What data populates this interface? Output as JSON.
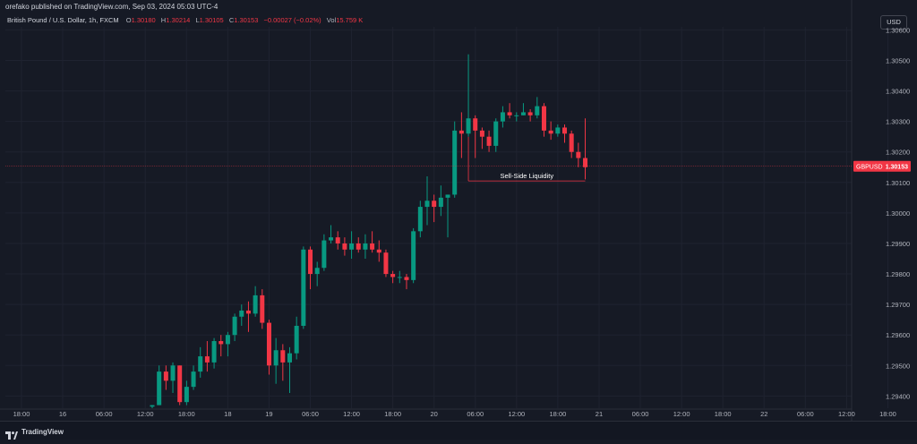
{
  "header": {
    "publisher_line": "orefako published on TradingView.com, Sep 03, 2024 05:03 UTC-4",
    "symbol_desc": "British Pound / U.S. Dollar, 1h, FXCM",
    "ohlc": {
      "o_label": "O",
      "o_value": "1.30180",
      "h_label": "H",
      "h_value": "1.30214",
      "l_label": "L",
      "l_value": "1.30105",
      "c_label": "C",
      "c_value": "1.30153",
      "change": "−0.00027 (−0.02%)",
      "vol_label": "Vol",
      "vol_value": "15.759 K"
    },
    "currency_button": "USD"
  },
  "footer": {
    "brand": "TradingView"
  },
  "colors": {
    "up": "#089981",
    "down": "#f23645",
    "bg": "#161a25",
    "grid": "#1f2330",
    "text": "#b2b5be"
  },
  "chart_data": {
    "type": "candlestick",
    "symbol": "GBPUSD",
    "price_label": "1.30153",
    "ylim": [
      1.2936,
      1.3061
    ],
    "yticks": [
      "1.30600",
      "1.30500",
      "1.30400",
      "1.30300",
      "1.30200",
      "1.30100",
      "1.30000",
      "1.29900",
      "1.29800",
      "1.29700",
      "1.29600",
      "1.29500",
      "1.29400"
    ],
    "xticks": [
      "18:00",
      "16",
      "06:00",
      "12:00",
      "18:00",
      "18",
      "19",
      "06:00",
      "12:00",
      "18:00",
      "20",
      "06:00",
      "12:00",
      "18:00",
      "21",
      "06:00",
      "12:00",
      "18:00",
      "22",
      "06:00",
      "12:00",
      "18:00"
    ],
    "annotation": {
      "text": "Sell-Side Liquidity",
      "price": 1.30105
    },
    "candles": [
      [
        1.29365,
        1.2937,
        1.2936,
        1.2937
      ],
      [
        1.2937,
        1.295,
        1.2937,
        1.2948
      ],
      [
        1.2948,
        1.295,
        1.2942,
        1.2945
      ],
      [
        1.2945,
        1.2951,
        1.2941,
        1.295
      ],
      [
        1.295,
        1.295,
        1.2937,
        1.2938
      ],
      [
        1.2938,
        1.2945,
        1.2937,
        1.2943
      ],
      [
        1.2943,
        1.295,
        1.2942,
        1.2948
      ],
      [
        1.2948,
        1.2956,
        1.2946,
        1.2953
      ],
      [
        1.2953,
        1.2958,
        1.2948,
        1.2951
      ],
      [
        1.2951,
        1.2959,
        1.2949,
        1.2958
      ],
      [
        1.2958,
        1.296,
        1.2953,
        1.2957
      ],
      [
        1.2957,
        1.2961,
        1.2953,
        1.296
      ],
      [
        1.296,
        1.2967,
        1.2958,
        1.2966
      ],
      [
        1.2966,
        1.297,
        1.2963,
        1.2968
      ],
      [
        1.2968,
        1.2971,
        1.2961,
        1.2967
      ],
      [
        1.2967,
        1.2976,
        1.2966,
        1.2973
      ],
      [
        1.2973,
        1.2975,
        1.2962,
        1.2964
      ],
      [
        1.2964,
        1.2965,
        1.2947,
        1.295
      ],
      [
        1.295,
        1.2959,
        1.2944,
        1.2955
      ],
      [
        1.2955,
        1.2957,
        1.2945,
        1.2951
      ],
      [
        1.2951,
        1.2956,
        1.2941,
        1.2954
      ],
      [
        1.2954,
        1.2966,
        1.2952,
        1.2963
      ],
      [
        1.2963,
        1.2989,
        1.2962,
        1.2988
      ],
      [
        1.2988,
        1.2989,
        1.2975,
        1.298
      ],
      [
        1.298,
        1.2984,
        1.2976,
        1.2982
      ],
      [
        1.2982,
        1.2993,
        1.2981,
        1.2991
      ],
      [
        1.2991,
        1.2996,
        1.299,
        1.2992
      ],
      [
        1.2992,
        1.2994,
        1.2988,
        1.299
      ],
      [
        1.299,
        1.2992,
        1.2986,
        1.2988
      ],
      [
        1.2988,
        1.2994,
        1.2985,
        1.299
      ],
      [
        1.299,
        1.2992,
        1.2987,
        1.2988
      ],
      [
        1.2988,
        1.2993,
        1.2985,
        1.299
      ],
      [
        1.299,
        1.2994,
        1.2987,
        1.2988
      ],
      [
        1.2988,
        1.2991,
        1.2984,
        1.2987
      ],
      [
        1.2987,
        1.2988,
        1.2979,
        1.298
      ],
      [
        1.298,
        1.2981,
        1.2977,
        1.2979
      ],
      [
        1.2979,
        1.2981,
        1.2977,
        1.2979
      ],
      [
        1.2979,
        1.298,
        1.2975,
        1.2978
      ],
      [
        1.2978,
        1.2995,
        1.2977,
        1.2994
      ],
      [
        1.2994,
        1.3004,
        1.2992,
        1.3002
      ],
      [
        1.3002,
        1.3012,
        1.2996,
        1.3004
      ],
      [
        1.3004,
        1.3006,
        1.2997,
        1.3002
      ],
      [
        1.3002,
        1.3009,
        1.2999,
        1.3005
      ],
      [
        1.3005,
        1.3006,
        1.2992,
        1.3006
      ],
      [
        1.3006,
        1.303,
        1.3005,
        1.3027
      ],
      [
        1.3027,
        1.3033,
        1.3018,
        1.3026
      ],
      [
        1.3026,
        1.3052,
        1.3025,
        1.3031
      ],
      [
        1.3031,
        1.3032,
        1.3018,
        1.3027
      ],
      [
        1.3027,
        1.3028,
        1.3021,
        1.3025
      ],
      [
        1.3025,
        1.3027,
        1.302,
        1.3022
      ],
      [
        1.3022,
        1.3031,
        1.302,
        1.303
      ],
      [
        1.303,
        1.3035,
        1.3028,
        1.3033
      ],
      [
        1.3033,
        1.3036,
        1.3031,
        1.3032
      ],
      [
        1.3032,
        1.3033,
        1.303,
        1.3032
      ],
      [
        1.3032,
        1.3036,
        1.3032,
        1.3033
      ],
      [
        1.3033,
        1.3034,
        1.303,
        1.3032
      ],
      [
        1.3032,
        1.3038,
        1.3031,
        1.3035
      ],
      [
        1.3035,
        1.3036,
        1.3025,
        1.3027
      ],
      [
        1.3027,
        1.303,
        1.3024,
        1.3026
      ],
      [
        1.3026,
        1.3029,
        1.3025,
        1.3028
      ],
      [
        1.3028,
        1.3029,
        1.3023,
        1.3026
      ],
      [
        1.3026,
        1.3027,
        1.3018,
        1.302
      ],
      [
        1.302,
        1.3023,
        1.3015,
        1.3018
      ],
      [
        1.3018,
        1.3031,
        1.3011,
        1.3015
      ]
    ]
  }
}
